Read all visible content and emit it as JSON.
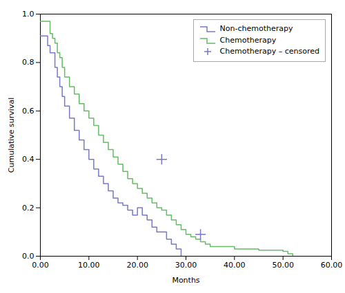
{
  "chart_data": {
    "type": "step",
    "xlabel": "Months",
    "ylabel": "Cumulative survival",
    "xlim": [
      0,
      60
    ],
    "ylim": [
      0.0,
      1.0
    ],
    "xticks": [
      {
        "value": 0,
        "label": "0.00"
      },
      {
        "value": 10,
        "label": "10.00"
      },
      {
        "value": 20,
        "label": "20.00"
      },
      {
        "value": 30,
        "label": "30.00"
      },
      {
        "value": 40,
        "label": "40.00"
      },
      {
        "value": 50,
        "label": "50.00"
      },
      {
        "value": 60,
        "label": "60.00"
      }
    ],
    "yticks": [
      {
        "value": 0.0,
        "label": "0.0"
      },
      0.2,
      0.4,
      0.6,
      0.8,
      {
        "value": 1.0,
        "label": "1.0"
      }
    ],
    "grid": false,
    "legend": "upper right",
    "series": [
      {
        "name": "Non-chemotherapy",
        "type": "step",
        "color": "#7878c8",
        "x": [
          0,
          1,
          1.5,
          2,
          3,
          3.5,
          4,
          4.5,
          5,
          6,
          7,
          8,
          9,
          10,
          11,
          12,
          13,
          14,
          15,
          16,
          17,
          18,
          19,
          20,
          21,
          22,
          23,
          24,
          25,
          26,
          27,
          28,
          29
        ],
        "values": [
          0.91,
          0.91,
          0.87,
          0.84,
          0.78,
          0.74,
          0.7,
          0.66,
          0.62,
          0.57,
          0.52,
          0.48,
          0.44,
          0.4,
          0.36,
          0.33,
          0.3,
          0.27,
          0.24,
          0.22,
          0.21,
          0.19,
          0.17,
          0.2,
          0.17,
          0.15,
          0.12,
          0.1,
          0.1,
          0.07,
          0.05,
          0.03,
          0.0
        ]
      },
      {
        "name": "Chemotherapy",
        "type": "step",
        "color": "#66bb66",
        "x": [
          0,
          1,
          2,
          2.5,
          3,
          3.5,
          4,
          4.5,
          5,
          6,
          7,
          8,
          9,
          10,
          11,
          12,
          13,
          14,
          15,
          16,
          17,
          18,
          19,
          20,
          21,
          22,
          23,
          24,
          25,
          26,
          27,
          28,
          29,
          30,
          31,
          32,
          33,
          34,
          35,
          40,
          45,
          50,
          51,
          52
        ],
        "values": [
          0.97,
          0.97,
          0.92,
          0.9,
          0.88,
          0.84,
          0.82,
          0.78,
          0.74,
          0.7,
          0.67,
          0.63,
          0.6,
          0.57,
          0.54,
          0.5,
          0.47,
          0.44,
          0.41,
          0.38,
          0.35,
          0.32,
          0.3,
          0.28,
          0.26,
          0.24,
          0.22,
          0.2,
          0.19,
          0.17,
          0.15,
          0.13,
          0.11,
          0.09,
          0.08,
          0.07,
          0.06,
          0.05,
          0.04,
          0.03,
          0.025,
          0.02,
          0.01,
          0.0
        ]
      },
      {
        "name": "Chemotherapy – censored",
        "type": "scatter",
        "marker": "+",
        "color": "#7878c8",
        "x": [
          25.0,
          33.0
        ],
        "values": [
          0.4,
          0.09
        ]
      }
    ]
  }
}
